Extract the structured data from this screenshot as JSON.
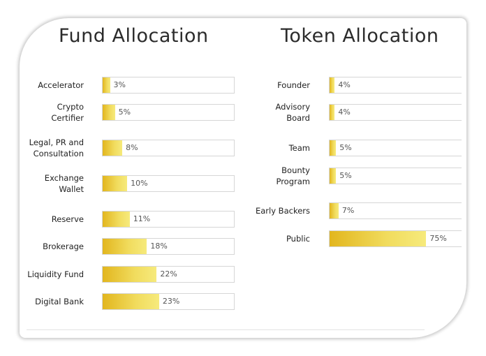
{
  "chart_data": [
    {
      "type": "bar",
      "orientation": "horizontal",
      "title": "Fund Allocation",
      "categories": [
        "Accelerator",
        "Crypto\nCertifier",
        "Legal, PR and\nConsultation",
        "Exchange\nWallet",
        "Reserve",
        "Brokerage",
        "Liquidity Fund",
        "Digital Bank"
      ],
      "values": [
        3,
        5,
        8,
        10,
        11,
        18,
        22,
        23
      ],
      "labels": [
        "3%",
        "5%",
        "8%",
        "10%",
        "11%",
        "18%",
        "22%",
        "23%"
      ],
      "unit": "%",
      "xlim": [
        0,
        100
      ]
    },
    {
      "type": "bar",
      "orientation": "horizontal",
      "title": "Token Allocation",
      "categories": [
        "Founder",
        "Advisory\nBoard",
        "Team",
        "Bounty\nProgram",
        "Early Backers",
        "Public"
      ],
      "values": [
        4,
        4,
        5,
        5,
        7,
        75
      ],
      "labels": [
        "4%",
        "4%",
        "5%",
        "5%",
        "7%",
        "75%"
      ],
      "unit": "%",
      "xlim": [
        0,
        100
      ]
    }
  ],
  "colors": {
    "bar_start": "#e2b61e",
    "bar_end": "#f6ea7c",
    "track_border": "#d6d6d6",
    "title": "#2b2b2b"
  }
}
